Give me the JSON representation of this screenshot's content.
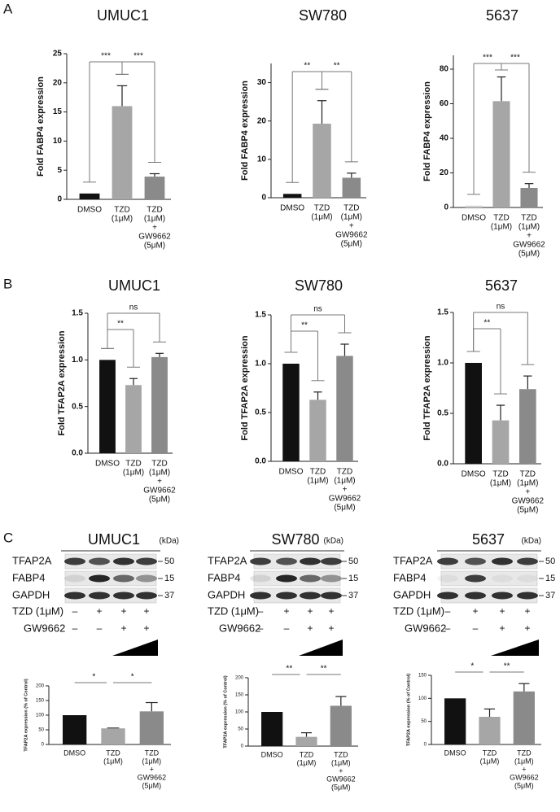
{
  "panel_labels": [
    "A",
    "B",
    "C"
  ],
  "chart_data": [
    {
      "type": "bar",
      "title": "UMUC1",
      "ylabel": "Fold FABP4 expression",
      "categories": [
        [
          "DMSO"
        ],
        [
          "TZD",
          "(1μM)"
        ],
        [
          "TZD",
          "(1μM)",
          "+",
          "GW9662",
          "(5μM)"
        ]
      ],
      "values": [
        1,
        16,
        3.9
      ],
      "errors": [
        0,
        3.5,
        0.5
      ],
      "colors": [
        "#111111",
        "#a6a6a6",
        "#8a8a8a"
      ],
      "ylim": [
        0,
        25
      ],
      "yticks": [
        0,
        5,
        10,
        15,
        20,
        25
      ],
      "brackets": true,
      "annotations": [
        {
          "text": "***",
          "between": [
            0,
            1
          ]
        },
        {
          "text": "***",
          "between": [
            1,
            2
          ]
        }
      ]
    },
    {
      "type": "bar",
      "title": "SW780",
      "ylabel": "Fold FABP4 expression",
      "categories": [
        [
          "DMSO"
        ],
        [
          "TZD",
          "(1μM)"
        ],
        [
          "TZD",
          "(1μM)",
          "+",
          "GW9662",
          "(5μM)"
        ]
      ],
      "values": [
        1,
        19.3,
        5.2
      ],
      "errors": [
        0,
        6,
        1.2
      ],
      "colors": [
        "#111111",
        "#a6a6a6",
        "#8a8a8a"
      ],
      "ylim": [
        0,
        35
      ],
      "yticks": [
        0,
        10,
        20,
        30
      ],
      "brackets": true,
      "annotations": [
        {
          "text": "**",
          "between": [
            0,
            1
          ]
        },
        {
          "text": "**",
          "between": [
            1,
            2
          ]
        }
      ]
    },
    {
      "type": "bar",
      "title": "5637",
      "ylabel": "Fold FABP4 expression",
      "categories": [
        [
          "DMSO"
        ],
        [
          "TZD",
          "(1μM)"
        ],
        [
          "TZD",
          "(1μM)",
          "+",
          "GW9662",
          "(5μM)"
        ]
      ],
      "values": [
        1,
        61.5,
        11.3
      ],
      "errors": [
        0,
        14,
        2.5
      ],
      "colors": [
        "#cfcfcf",
        "#a6a6a6",
        "#8a8a8a"
      ],
      "ylim": [
        0,
        88
      ],
      "yticks": [
        0,
        20,
        40,
        60,
        80
      ],
      "brackets": true,
      "annotations": [
        {
          "text": "***",
          "between": [
            0,
            1
          ]
        },
        {
          "text": "***",
          "between": [
            1,
            2
          ]
        }
      ]
    },
    {
      "type": "bar",
      "title": "UMUC1",
      "ylabel": "Fold TFAP2A expression",
      "categories": [
        [
          "DMSO"
        ],
        [
          "TZD",
          "(1μM)"
        ],
        [
          "TZD",
          "(1μM)",
          "+",
          "GW9662",
          "(5μM)"
        ]
      ],
      "values": [
        1.0,
        0.73,
        1.03
      ],
      "errors": [
        0,
        0.07,
        0.04
      ],
      "colors": [
        "#111111",
        "#a6a6a6",
        "#8a8a8a"
      ],
      "ylim": [
        0,
        1.5
      ],
      "yticks": [
        {
          "value": 0,
          "label": "0.0"
        },
        0.5,
        {
          "value": 1,
          "label": "1.0"
        },
        1.5
      ],
      "brackets": true,
      "annotations": [
        {
          "text": "**",
          "between": [
            0,
            1
          ]
        },
        {
          "text": "ns",
          "between": [
            0,
            2
          ]
        }
      ]
    },
    {
      "type": "bar",
      "title": "SW780",
      "ylabel": "Fold TFAP2A expression",
      "categories": [
        [
          "DMSO"
        ],
        [
          "TZD",
          "(1μM)"
        ],
        [
          "TZD",
          "(1μM)",
          "+",
          "GW9662",
          "(5μM)"
        ]
      ],
      "values": [
        1.0,
        0.63,
        1.08
      ],
      "errors": [
        0,
        0.08,
        0.12
      ],
      "colors": [
        "#111111",
        "#a6a6a6",
        "#8a8a8a"
      ],
      "ylim": [
        0,
        1.5
      ],
      "yticks": [
        {
          "value": 0,
          "label": "0.0"
        },
        0.5,
        {
          "value": 1,
          "label": "1.0"
        },
        1.5
      ],
      "brackets": true,
      "annotations": [
        {
          "text": "**",
          "between": [
            0,
            1
          ]
        },
        {
          "text": "ns",
          "between": [
            0,
            2
          ]
        }
      ]
    },
    {
      "type": "bar",
      "title": "5637",
      "ylabel": "Fold TFAP2A expression",
      "categories": [
        [
          "DMSO"
        ],
        [
          "TZD",
          "(1μM)"
        ],
        [
          "TZD",
          "(1μM)",
          "+",
          "GW9662",
          "(5μM)"
        ]
      ],
      "values": [
        1.0,
        0.43,
        0.74
      ],
      "errors": [
        0,
        0.15,
        0.13
      ],
      "colors": [
        "#111111",
        "#a6a6a6",
        "#8a8a8a"
      ],
      "ylim": [
        0,
        1.5
      ],
      "yticks": [
        {
          "value": 0,
          "label": "0.0"
        },
        0.5,
        {
          "value": 1,
          "label": "1.0"
        },
        1.5
      ],
      "brackets": true,
      "annotations": [
        {
          "text": "**",
          "between": [
            0,
            1
          ]
        },
        {
          "text": "ns",
          "between": [
            0,
            2
          ]
        }
      ]
    },
    {
      "type": "bar",
      "ylabel": "TFAP2A expression (% of Control)",
      "categories": [
        [
          "DMSO"
        ],
        [
          "TZD",
          "(1μM)"
        ],
        [
          "TZD",
          "(1μM)",
          "+",
          "GW9662",
          "(5μM)"
        ]
      ],
      "values": [
        100,
        55,
        113
      ],
      "errors": [
        0,
        1,
        30
      ],
      "colors": [
        "#111111",
        "#a6a6a6",
        "#8a8a8a"
      ],
      "ylim": [
        0,
        200
      ],
      "yticks": [
        0,
        50,
        100,
        150,
        200
      ],
      "brackets": false,
      "annotations": [
        {
          "text": "*",
          "between": [
            0,
            1
          ]
        },
        {
          "text": "*",
          "between": [
            1,
            2
          ]
        }
      ]
    },
    {
      "type": "bar",
      "ylabel": "TFAP2A expression (% of Control)",
      "categories": [
        [
          "DMSO"
        ],
        [
          "TZD",
          "(1μM)"
        ],
        [
          "TZD",
          "(1μM)",
          "+",
          "GW9662",
          "(5μM)"
        ]
      ],
      "values": [
        100,
        27,
        118
      ],
      "errors": [
        0,
        12,
        27
      ],
      "colors": [
        "#111111",
        "#a6a6a6",
        "#8a8a8a"
      ],
      "ylim": [
        0,
        200
      ],
      "yticks": [
        0,
        50,
        100,
        150,
        200
      ],
      "brackets": false,
      "annotations": [
        {
          "text": "**",
          "between": [
            0,
            1
          ]
        },
        {
          "text": "**",
          "between": [
            1,
            2
          ]
        }
      ]
    },
    {
      "type": "bar",
      "ylabel": "TFAP2A expression (% of Control)",
      "categories": [
        [
          "DMSO"
        ],
        [
          "TZD",
          "(1μM)"
        ],
        [
          "TZD",
          "(1μM)",
          "+",
          "GW9662",
          "(5μM)"
        ]
      ],
      "values": [
        100,
        60,
        115
      ],
      "errors": [
        0,
        17,
        17
      ],
      "colors": [
        "#111111",
        "#a6a6a6",
        "#8a8a8a"
      ],
      "ylim": [
        0,
        150
      ],
      "yticks": [
        0,
        50,
        100,
        150
      ],
      "brackets": false,
      "annotations": [
        {
          "text": "*",
          "between": [
            0,
            1
          ]
        },
        {
          "text": "**",
          "between": [
            1,
            2
          ]
        }
      ]
    }
  ],
  "blots": [
    {
      "title": "UMUC1",
      "unit": "(kDa)",
      "rows": [
        {
          "protein": "TFAP2A",
          "kda": "50"
        },
        {
          "protein": "FABP4",
          "kda": "15"
        },
        {
          "protein": "GAPDH",
          "kda": "37"
        }
      ],
      "conditions": [
        {
          "name": "TZD (1μM)",
          "signs": [
            "–",
            "+",
            "+",
            "+"
          ]
        },
        {
          "name": "GW9662",
          "signs": [
            "–",
            "–",
            "+",
            "+"
          ]
        }
      ]
    },
    {
      "title": "SW780",
      "unit": "(kDa)",
      "rows": [
        {
          "protein": "TFAP2A",
          "kda": "50"
        },
        {
          "protein": "FABP4",
          "kda": "15"
        },
        {
          "protein": "GAPDH",
          "kda": "37"
        }
      ],
      "conditions": [
        {
          "name": "TZD (1μM)",
          "signs": [
            "–",
            "+",
            "+",
            "+"
          ]
        },
        {
          "name": "GW9662",
          "signs": [
            "–",
            "–",
            "+",
            "+"
          ]
        }
      ]
    },
    {
      "title": "5637",
      "unit": "(kDa)",
      "rows": [
        {
          "protein": "TFAP2A",
          "kda": "50"
        },
        {
          "protein": "FABP4",
          "kda": "15"
        },
        {
          "protein": "GAPDH",
          "kda": "37"
        }
      ],
      "conditions": [
        {
          "name": "TZD (1μM)",
          "signs": [
            "–",
            "+",
            "+",
            "+"
          ]
        },
        {
          "name": "GW9662",
          "signs": [
            "–",
            "–",
            "+",
            "+"
          ]
        }
      ]
    }
  ]
}
